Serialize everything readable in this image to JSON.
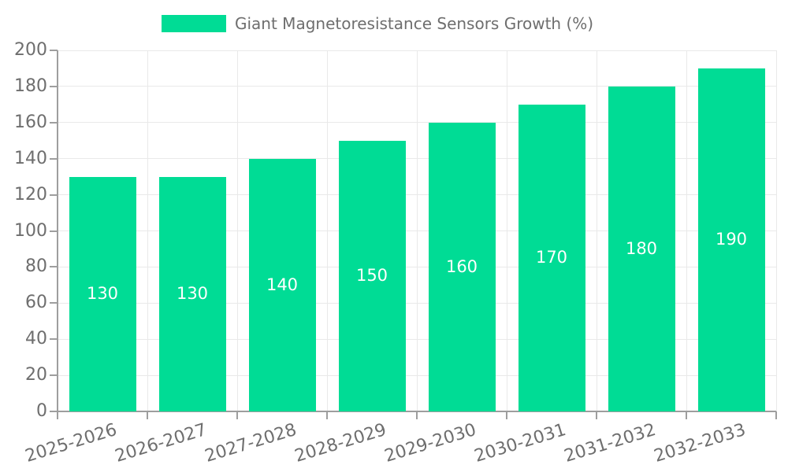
{
  "legend": {
    "series_label": "Giant Magnetoresistance Sensors Growth (%)"
  },
  "chart_data": {
    "type": "bar",
    "title": "Giant Magnetoresistance Sensors Growth (%)",
    "categories": [
      "2025-2026",
      "2026-2027",
      "2027-2028",
      "2028-2029",
      "2029-2030",
      "2030-2031",
      "2031-2032",
      "2032-2033"
    ],
    "values": [
      130,
      130,
      140,
      150,
      160,
      170,
      180,
      190
    ],
    "xlabel": "",
    "ylabel": "",
    "ylim": [
      0,
      200
    ],
    "ytick_step": 20,
    "grid": true,
    "legend_position": "top",
    "colors": {
      "bar": "#00DC95",
      "grid": "#e9e9e9",
      "axis": "#9e9e9e",
      "text": "#6e6e6e",
      "value_label": "#ffffff"
    }
  }
}
